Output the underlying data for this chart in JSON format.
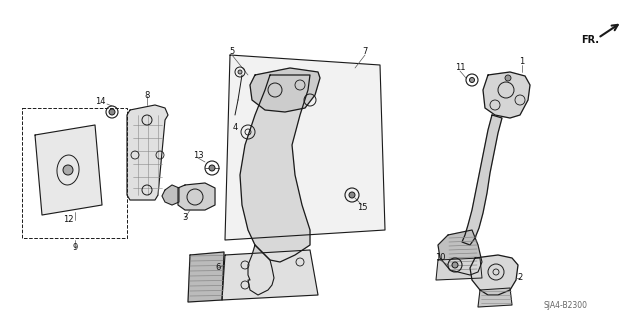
{
  "background_color": "#ffffff",
  "line_color": "#1a1a1a",
  "fig_width": 6.4,
  "fig_height": 3.19,
  "dpi": 100,
  "diagram_code": "SJA4-B2300"
}
